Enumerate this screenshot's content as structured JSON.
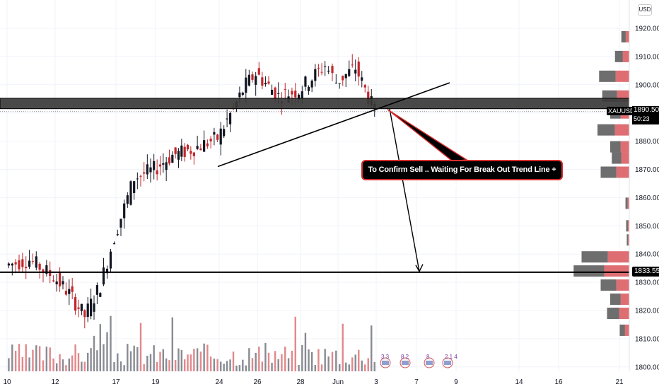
{
  "currency_button": "USD",
  "symbol_badge": "XAUUSD",
  "last_price": "1890.505",
  "countdown": "50:23",
  "level_price": "1833.558",
  "annotation": "To Confirm Sell .. Waiting For Break Out Trend Line + Area",
  "events": [
    "3 3",
    "8 2",
    "8",
    "2 1 4"
  ],
  "colors": {
    "up": "#131722",
    "down": "#c2262b",
    "zone": "#000000",
    "line": "#000000",
    "callout_border": "#d52d2d"
  },
  "chart_data": {
    "type": "candlestick",
    "symbol": "XAUUSD",
    "y_ticks": [
      "1920.000",
      "1910.000",
      "1900.000",
      "1890.000",
      "1880.000",
      "1870.000",
      "1860.000",
      "1850.000",
      "1840.000",
      "1830.000",
      "1820.000",
      "1810.000",
      "1800.000"
    ],
    "ylim": [
      1798,
      1924
    ],
    "x_ticks": [
      "10",
      "12",
      "17",
      "19",
      "24",
      "26",
      "28",
      "Jun",
      "3",
      "7",
      "9",
      "14",
      "16",
      "21"
    ],
    "resistance_zone": [
      1891.5,
      1895.2
    ],
    "support_level": 1833.558,
    "trendline": {
      "from_date": "May 23",
      "from_price": 1871,
      "to_date": "Jun 4",
      "to_price": 1900.7
    },
    "projection": {
      "start_price": 1891.5,
      "end_price": 1833.6
    },
    "price_path": [
      {
        "date": "May 10",
        "close": 1836
      },
      {
        "date": "May 11",
        "close": 1838
      },
      {
        "date": "May 12",
        "close": 1832
      },
      {
        "date": "May 13",
        "close": 1826
      },
      {
        "date": "May 14",
        "close": 1818
      },
      {
        "date": "May 15",
        "close": 1829
      },
      {
        "date": "May 17",
        "close": 1846
      },
      {
        "date": "May 18",
        "close": 1867
      },
      {
        "date": "May 19",
        "close": 1870
      },
      {
        "date": "May 20",
        "close": 1875
      },
      {
        "date": "May 21",
        "close": 1877
      },
      {
        "date": "May 24",
        "close": 1881
      },
      {
        "date": "May 25",
        "close": 1900
      },
      {
        "date": "May 26",
        "close": 1904
      },
      {
        "date": "May 27",
        "close": 1896
      },
      {
        "date": "May 28",
        "close": 1898
      },
      {
        "date": "May 31",
        "close": 1907
      },
      {
        "date": "Jun 1",
        "close": 1901
      },
      {
        "date": "Jun 2",
        "close": 1906
      },
      {
        "date": "Jun 3",
        "close": 1890.5
      }
    ],
    "volume_profile": [
      {
        "price": 1917,
        "size": 0.25
      },
      {
        "price": 1910,
        "size": 0.45
      },
      {
        "price": 1903,
        "size": 0.95
      },
      {
        "price": 1896,
        "size": 0.85
      },
      {
        "price": 1890,
        "size": 0.6
      },
      {
        "price": 1884,
        "size": 1.0
      },
      {
        "price": 1878,
        "size": 0.6
      },
      {
        "price": 1874,
        "size": 0.55
      },
      {
        "price": 1869,
        "size": 0.9
      },
      {
        "price": 1858,
        "size": 0.12
      },
      {
        "price": 1850,
        "size": 0.1
      },
      {
        "price": 1845,
        "size": 0.08
      },
      {
        "price": 1839,
        "size": 1.5
      },
      {
        "price": 1834,
        "size": 1.75
      },
      {
        "price": 1829,
        "size": 0.9
      },
      {
        "price": 1824,
        "size": 0.6
      },
      {
        "price": 1819,
        "size": 0.7
      },
      {
        "price": 1813,
        "size": 0.3
      }
    ]
  }
}
